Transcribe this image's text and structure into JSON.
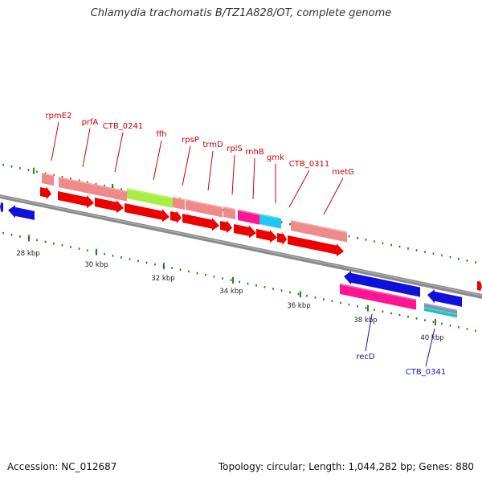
{
  "title": "Chlamydia trachomatis B/TZ1A828/OT, complete genome",
  "footer": {
    "accession": "Accession: NC_012687",
    "topology": "Topology: circular; Length: 1,044,282 bp; Genes: 880"
  },
  "colors": {
    "backbone": "#8a8a8a",
    "tick": "#0a7a0a",
    "forward_label": "#cc0000",
    "reverse_label": "#1010bb",
    "cds_red": "#ee0000",
    "rrna_salmon": "#f08a8a",
    "green_feature": "#aaee44",
    "magenta": "#ff1493",
    "cyan": "#1ec8f0",
    "blue": "#1010dd",
    "teal": "#20c0c0",
    "slate": "#8090b0"
  },
  "scale_labels": [
    {
      "kbp": 28,
      "text": "28 kbp"
    },
    {
      "kbp": 30,
      "text": "30 kbp"
    },
    {
      "kbp": 32,
      "text": "32 kbp"
    },
    {
      "kbp": 34,
      "text": "34 kbp"
    },
    {
      "kbp": 36,
      "text": "36 kbp"
    },
    {
      "kbp": 38,
      "text": "38 kbp"
    },
    {
      "kbp": 40,
      "text": "40 kbp"
    }
  ],
  "gene_labels": {
    "forward": [
      "rpmE2",
      "prfA",
      "CTB_0241",
      "ffh",
      "rpsP",
      "trmD",
      "rplS",
      "rnhB",
      "gmk",
      "CTB_0311",
      "metG"
    ],
    "reverse": [
      "recD",
      "CTB_0341"
    ]
  }
}
